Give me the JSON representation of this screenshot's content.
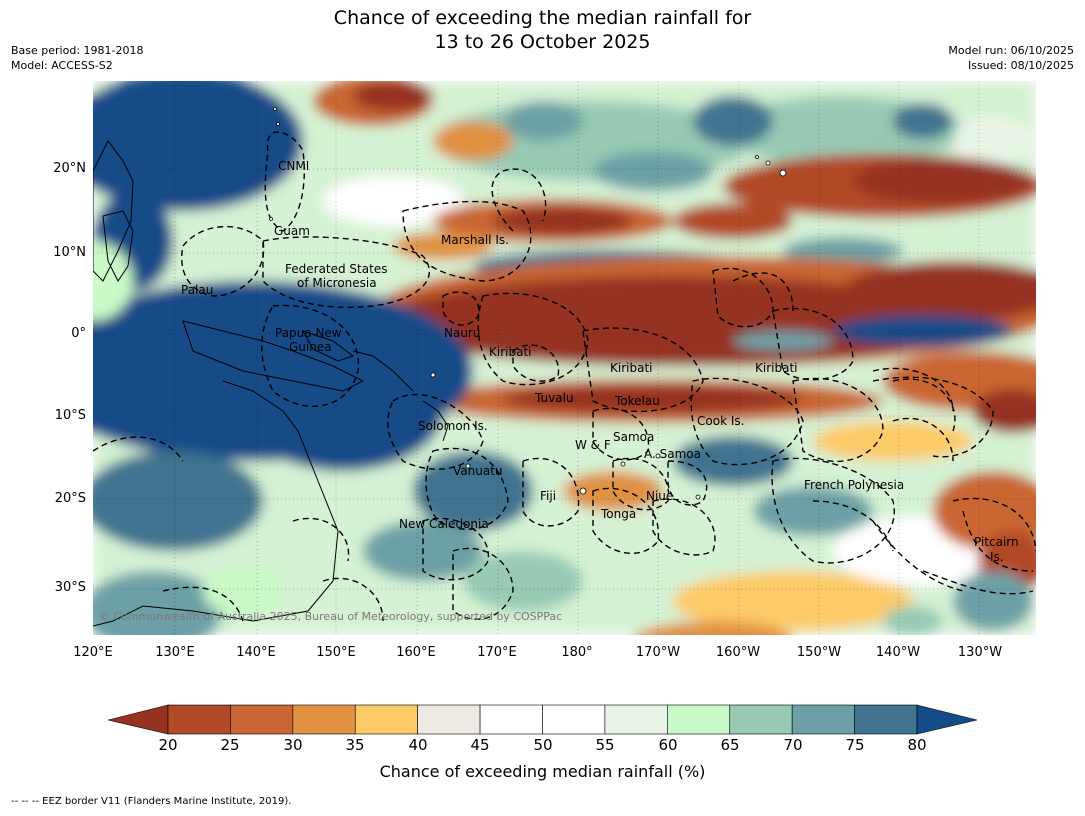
{
  "title": {
    "line1": "Chance of exceeding the median rainfall for",
    "line2": "13 to 26 October 2025"
  },
  "meta": {
    "base_period": "Base period: 1981-2018",
    "model": "Model: ACCESS-S2",
    "model_run": "Model run: 06/10/2025",
    "issued": "Issued: 08/10/2025"
  },
  "axes": {
    "lon_labels": [
      "120°E",
      "130°E",
      "140°E",
      "150°E",
      "160°E",
      "170°E",
      "180°",
      "170°W",
      "160°W",
      "150°W",
      "140°W",
      "130°W"
    ],
    "lat_labels": [
      "20°N",
      "10°N",
      "0°",
      "10°S",
      "20°S",
      "30°S"
    ]
  },
  "regions": [
    {
      "id": "cnmi",
      "label": "CNMI"
    },
    {
      "id": "guam",
      "label": "Guam"
    },
    {
      "id": "marshall",
      "label": "Marshall Is."
    },
    {
      "id": "fsm1",
      "label": "Federated States"
    },
    {
      "id": "fsm2",
      "label": "of Micronesia"
    },
    {
      "id": "palau",
      "label": "Palau"
    },
    {
      "id": "png1",
      "label": "Papua New"
    },
    {
      "id": "png2",
      "label": "Guinea"
    },
    {
      "id": "nauru",
      "label": "Nauru"
    },
    {
      "id": "kiribati1",
      "label": "Kiribati"
    },
    {
      "id": "kiribati2",
      "label": "Kiribati"
    },
    {
      "id": "kiribati3",
      "label": "Kiribati"
    },
    {
      "id": "tuvalu",
      "label": "Tuvalu"
    },
    {
      "id": "tokelau",
      "label": "Tokelau"
    },
    {
      "id": "cook",
      "label": "Cook Is."
    },
    {
      "id": "solomon",
      "label": "Solomon Is."
    },
    {
      "id": "samoa",
      "label": "Samoa"
    },
    {
      "id": "wf",
      "label": "W & F"
    },
    {
      "id": "asamoa",
      "label": "A. Samoa"
    },
    {
      "id": "vanuatu",
      "label": "Vanuatu"
    },
    {
      "id": "fiji",
      "label": "Fiji"
    },
    {
      "id": "niue",
      "label": "Niue"
    },
    {
      "id": "frpoly",
      "label": "French Polynesia"
    },
    {
      "id": "tonga",
      "label": "Tonga"
    },
    {
      "id": "newcal",
      "label": "New Caledonia"
    },
    {
      "id": "pitcairn1",
      "label": "Pitcairn"
    },
    {
      "id": "pitcairn2",
      "label": "Is."
    }
  ],
  "credit": "© Commonwealth of Australia 2025, Bureau of Meteorology, supported by COSPPac",
  "colorbar": {
    "ticks": [
      "20",
      "25",
      "30",
      "35",
      "40",
      "45",
      "50",
      "55",
      "60",
      "65",
      "70",
      "75",
      "80"
    ],
    "colors": {
      "under": "#953220",
      "bins": [
        "#b24a28",
        "#c96633",
        "#e09142",
        "#fdca68",
        "#ede9e3",
        "#ffffff",
        "#ffffff",
        "#e8f5e6",
        "#c9fac7",
        "#98cab4",
        "#6da0a6",
        "#40738f"
      ],
      "over": "#144c88"
    },
    "label": "Chance of exceeding median rainfall (%)"
  },
  "footnote": "--  --  -- EEZ border V11 (Flanders Marine Institute, 2019)."
}
